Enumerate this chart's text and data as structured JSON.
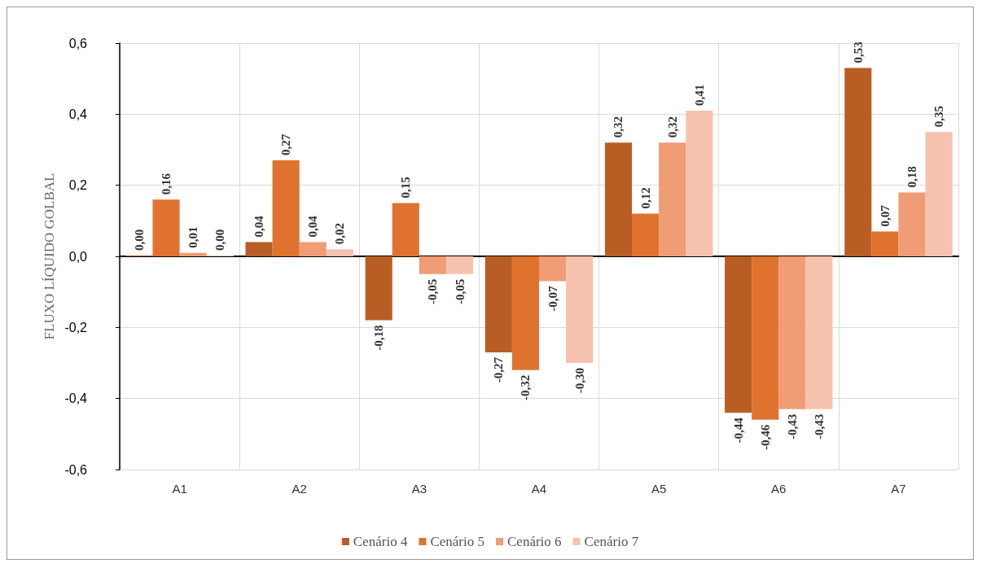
{
  "chart_data": {
    "type": "bar",
    "ylabel": "FLUXO LÍQUIDO GOLBAL",
    "categories": [
      "A1",
      "A2",
      "A3",
      "A4",
      "A5",
      "A6",
      "A7"
    ],
    "series": [
      {
        "name": "Cenário 4",
        "color": "#b85e24",
        "values": [
          0.0,
          0.04,
          -0.18,
          -0.27,
          0.32,
          -0.44,
          0.53
        ],
        "value_labels": [
          "0,00",
          "0,04",
          "-0,18",
          "-0,27",
          "0,32",
          "-0,44",
          "0,53"
        ]
      },
      {
        "name": "Cenário 5",
        "color": "#e07230",
        "values": [
          0.16,
          0.27,
          0.15,
          -0.32,
          0.12,
          -0.46,
          0.07
        ],
        "value_labels": [
          "0,16",
          "0,27",
          "0,15",
          "-0,32",
          "0,12",
          "-0,46",
          "0,07"
        ]
      },
      {
        "name": "Cenário 6",
        "color": "#f09c74",
        "values": [
          0.01,
          0.04,
          -0.05,
          -0.07,
          0.32,
          -0.43,
          0.18
        ],
        "value_labels": [
          "0,01",
          "0,04",
          "-0,05",
          "-0,07",
          "0,32",
          "-0,43",
          "0,18"
        ]
      },
      {
        "name": "Cenário 7",
        "color": "#f6c2ae",
        "values": [
          0.0,
          0.02,
          -0.05,
          -0.3,
          0.41,
          -0.43,
          0.35
        ],
        "value_labels": [
          "0,00",
          "0,02",
          "-0,05",
          "-0,30",
          "0,41",
          "-0,43",
          "0,35"
        ]
      }
    ],
    "ylim": [
      -0.6,
      0.6
    ],
    "yticks": [
      {
        "value": -0.6,
        "label": "-0,6"
      },
      {
        "value": -0.4,
        "label": "-0,4"
      },
      {
        "value": -0.2,
        "label": "-0,2"
      },
      {
        "value": 0,
        "label": "0,0"
      },
      {
        "value": 0.2,
        "label": "0,2"
      },
      {
        "value": 0.4,
        "label": "0,4"
      },
      {
        "value": 0.6,
        "label": "0,6"
      }
    ],
    "grid": true,
    "legend": "bottom"
  }
}
